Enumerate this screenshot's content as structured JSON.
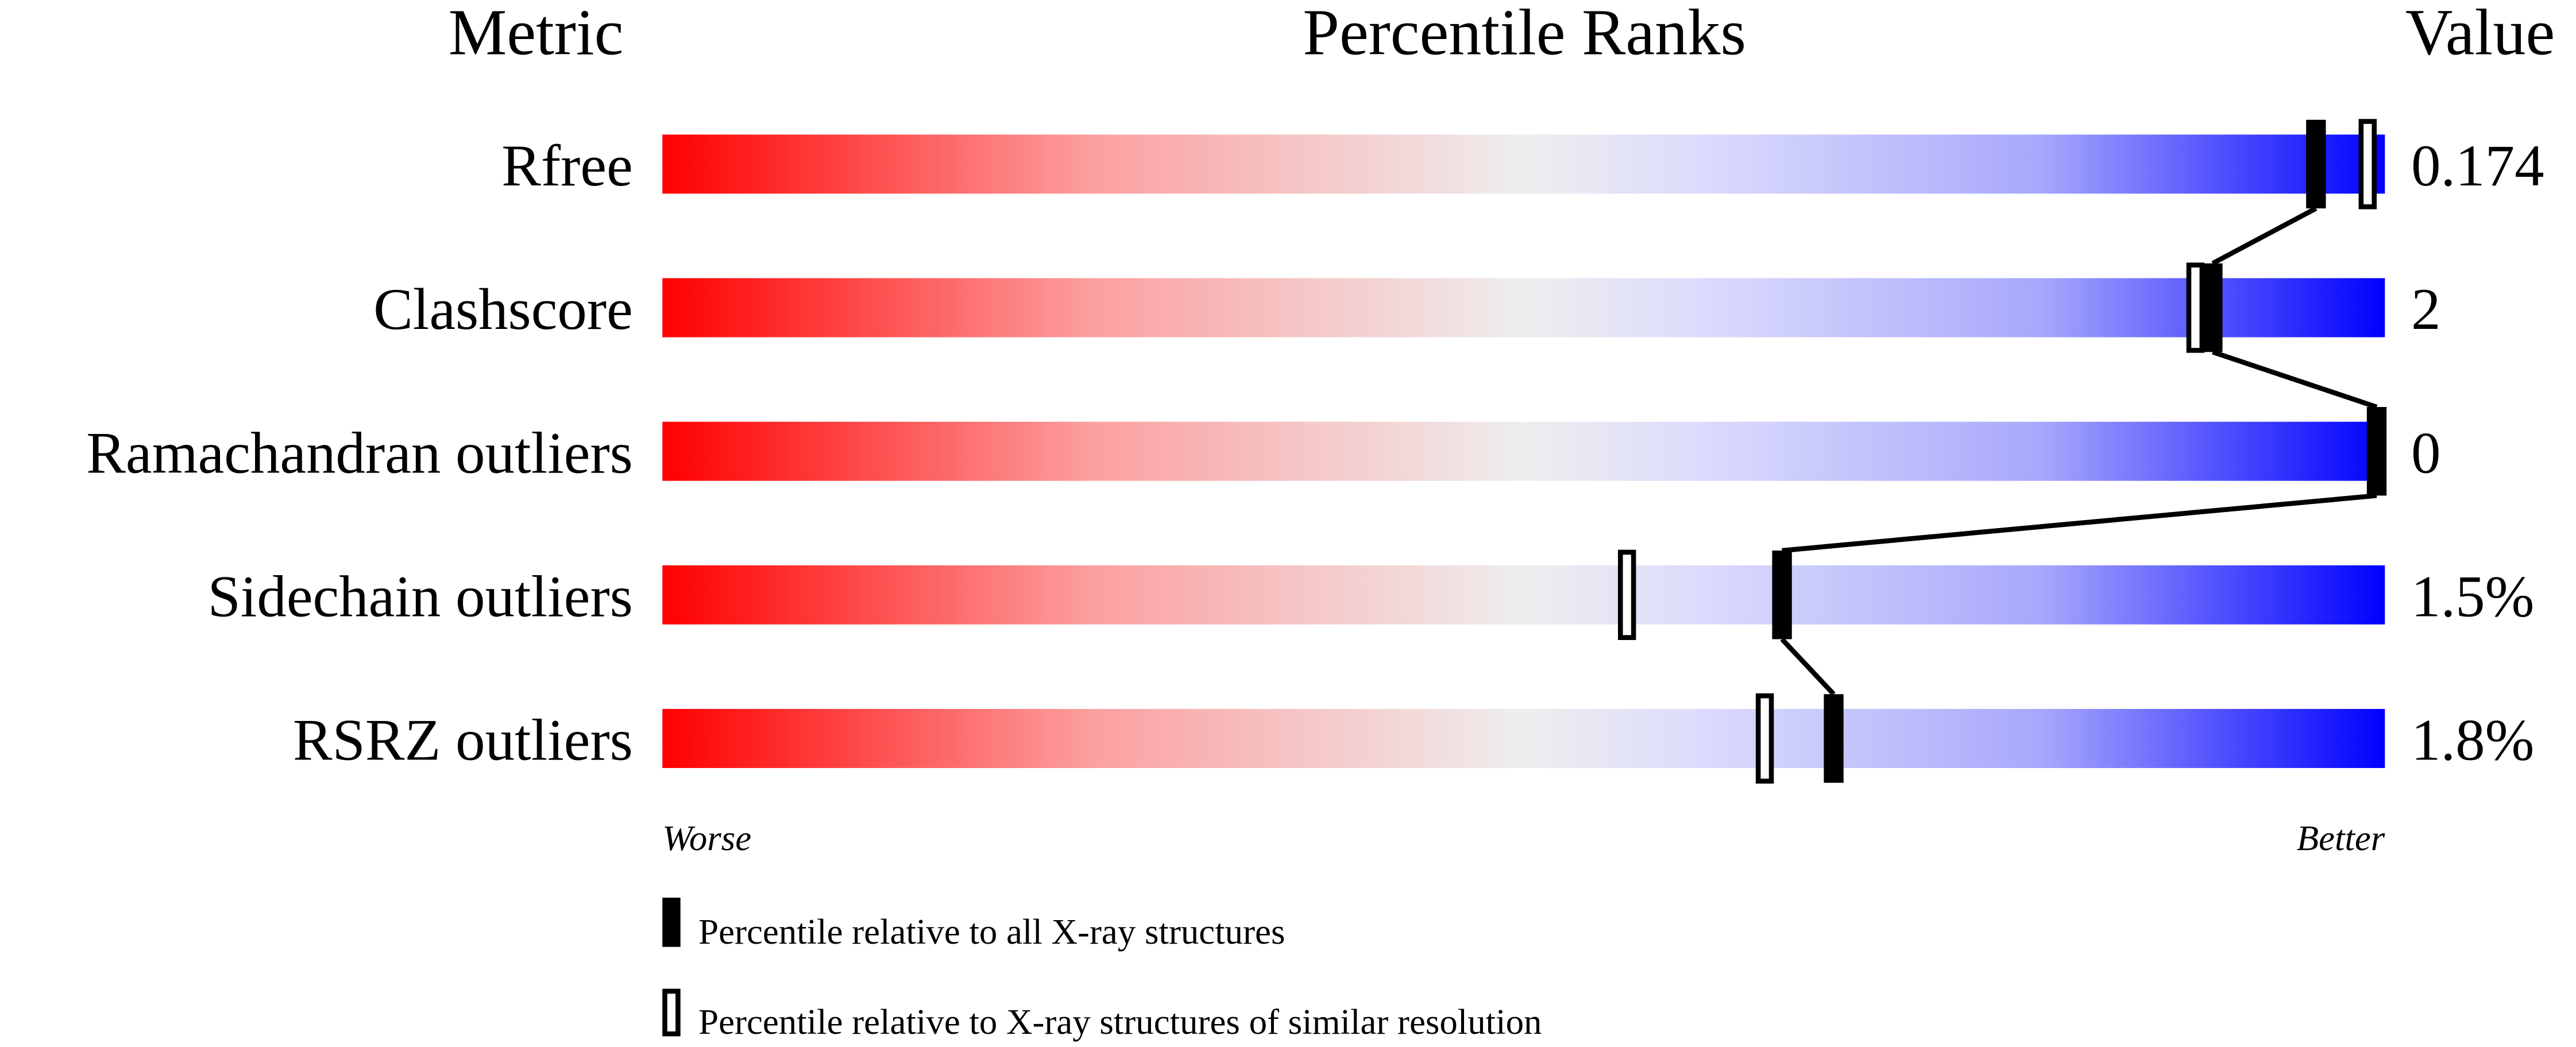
{
  "chart_data": {
    "type": "bar",
    "headers": {
      "metric": "Metric",
      "percentile": "Percentile Ranks",
      "value": "Value"
    },
    "xlim": [
      0,
      100
    ],
    "axis_ends": {
      "left": "Worse",
      "right": "Better"
    },
    "gradient_colors": [
      "#ff0000",
      "#eeeeee",
      "#0000ff"
    ],
    "metrics": [
      {
        "name": "Rfree",
        "value": "0.174",
        "percentile_all": 96,
        "percentile_similar": 99
      },
      {
        "name": "Clashscore",
        "value": "2",
        "percentile_all": 90,
        "percentile_similar": 89
      },
      {
        "name": "Ramachandran outliers",
        "value": "0",
        "percentile_all": 100,
        "percentile_similar": 100
      },
      {
        "name": "Sidechain outliers",
        "value": "1.5%",
        "percentile_all": 65,
        "percentile_similar": 56
      },
      {
        "name": "RSRZ outliers",
        "value": "1.8%",
        "percentile_all": 68,
        "percentile_similar": 64
      }
    ],
    "legend": [
      {
        "marker": "filled",
        "label": "Percentile relative to all X-ray structures"
      },
      {
        "marker": "open",
        "label": "Percentile relative to X-ray structures of similar resolution"
      }
    ]
  }
}
